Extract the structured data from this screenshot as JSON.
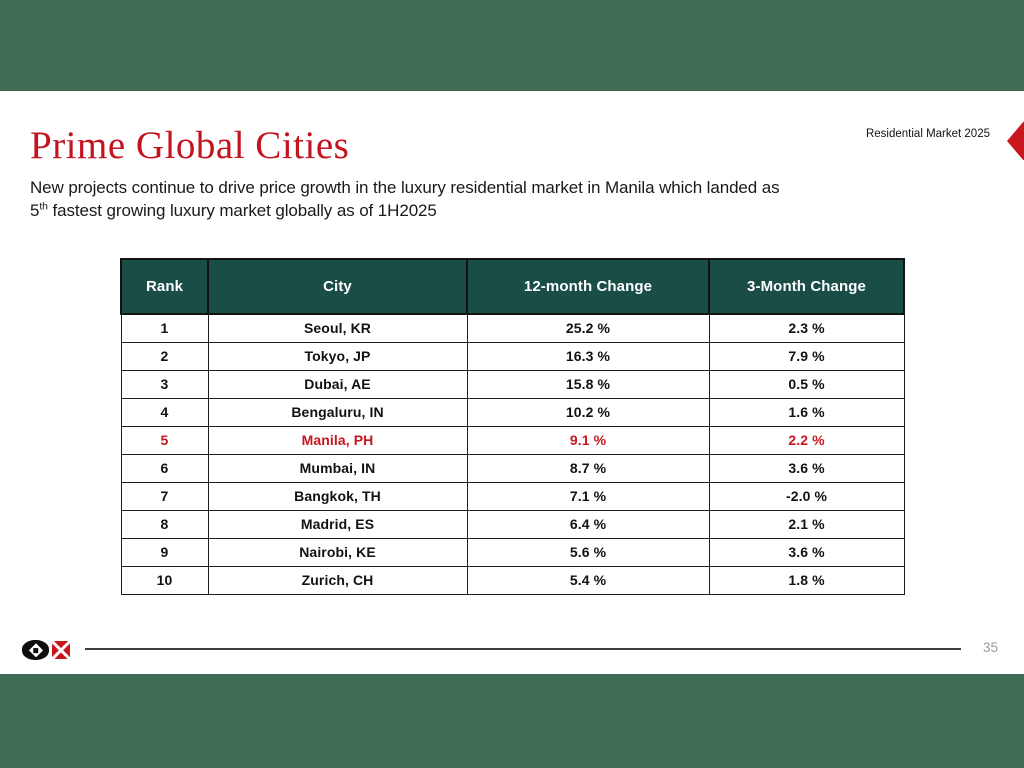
{
  "slide": {
    "title": "Prime Global Cities",
    "tag": "Residential Market 2025",
    "subtitle_line1": "New projects continue to drive price growth in the luxury residential market in Manila which landed as",
    "subtitle_line2_num": "5",
    "subtitle_line2_sup": "th",
    "subtitle_line2_rest": " fastest growing luxury market globally as of 1H2025"
  },
  "colors": {
    "band_green": "#3f6a53",
    "table_header_teal": "#1b4d47",
    "accent_red": "#c9151e"
  },
  "table": {
    "columns": [
      "Rank",
      "City",
      "12-month Change",
      "3-Month Change"
    ],
    "rows": [
      {
        "rank": "1",
        "city": "Seoul, KR",
        "m12": "25.2 %",
        "m3": "2.3 %",
        "highlight": false
      },
      {
        "rank": "2",
        "city": "Tokyo, JP",
        "m12": "16.3 %",
        "m3": "7.9 %",
        "highlight": false
      },
      {
        "rank": "3",
        "city": "Dubai, AE",
        "m12": "15.8 %",
        "m3": "0.5 %",
        "highlight": false
      },
      {
        "rank": "4",
        "city": "Bengaluru, IN",
        "m12": "10.2 %",
        "m3": "1.6 %",
        "highlight": false
      },
      {
        "rank": "5",
        "city": "Manila, PH",
        "m12": "9.1 %",
        "m3": "2.2 %",
        "highlight": true
      },
      {
        "rank": "6",
        "city": "Mumbai, IN",
        "m12": "8.7 %",
        "m3": "3.6 %",
        "highlight": false
      },
      {
        "rank": "7",
        "city": "Bangkok, TH",
        "m12": "7.1 %",
        "m3": "-2.0 %",
        "highlight": false
      },
      {
        "rank": "8",
        "city": "Madrid, ES",
        "m12": "6.4 %",
        "m3": "2.1 %",
        "highlight": false
      },
      {
        "rank": "9",
        "city": "Nairobi, KE",
        "m12": "5.6 %",
        "m3": "3.6 %",
        "highlight": false
      },
      {
        "rank": "10",
        "city": "Zurich, CH",
        "m12": "5.4 %",
        "m3": "1.8 %",
        "highlight": false
      }
    ]
  },
  "footer": {
    "page_number": "35"
  }
}
